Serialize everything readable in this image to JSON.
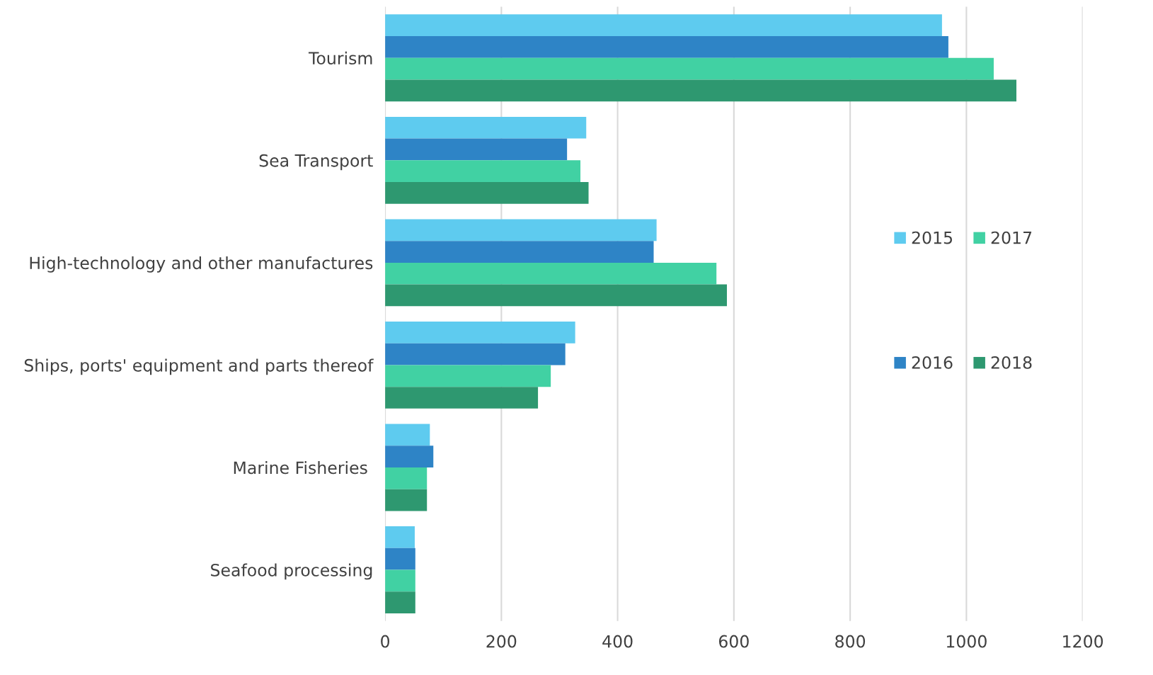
{
  "chart_data": {
    "type": "bar",
    "orientation": "horizontal",
    "categories": [
      "Tourism",
      "Sea Transport",
      "High-technology and other manufactures",
      "Ships, ports' equipment and parts thereof",
      "Marine Fisheries ",
      "Seafood processing"
    ],
    "series": [
      {
        "name": "2015",
        "color": "#5ecbef",
        "values": [
          958,
          346,
          467,
          327,
          77,
          51
        ]
      },
      {
        "name": "2016",
        "color": "#2e84c6",
        "values": [
          969,
          313,
          462,
          310,
          83,
          52
        ]
      },
      {
        "name": "2017",
        "color": "#41d1a3",
        "values": [
          1047,
          336,
          570,
          285,
          72,
          52
        ]
      },
      {
        "name": "2018",
        "color": "#2e9870",
        "values": [
          1086,
          350,
          588,
          263,
          72,
          52
        ]
      }
    ],
    "xlim": [
      0,
      1200
    ],
    "xticks": [
      0,
      200,
      400,
      600,
      800,
      1000,
      1200
    ],
    "grid": "x",
    "legend": "right"
  }
}
